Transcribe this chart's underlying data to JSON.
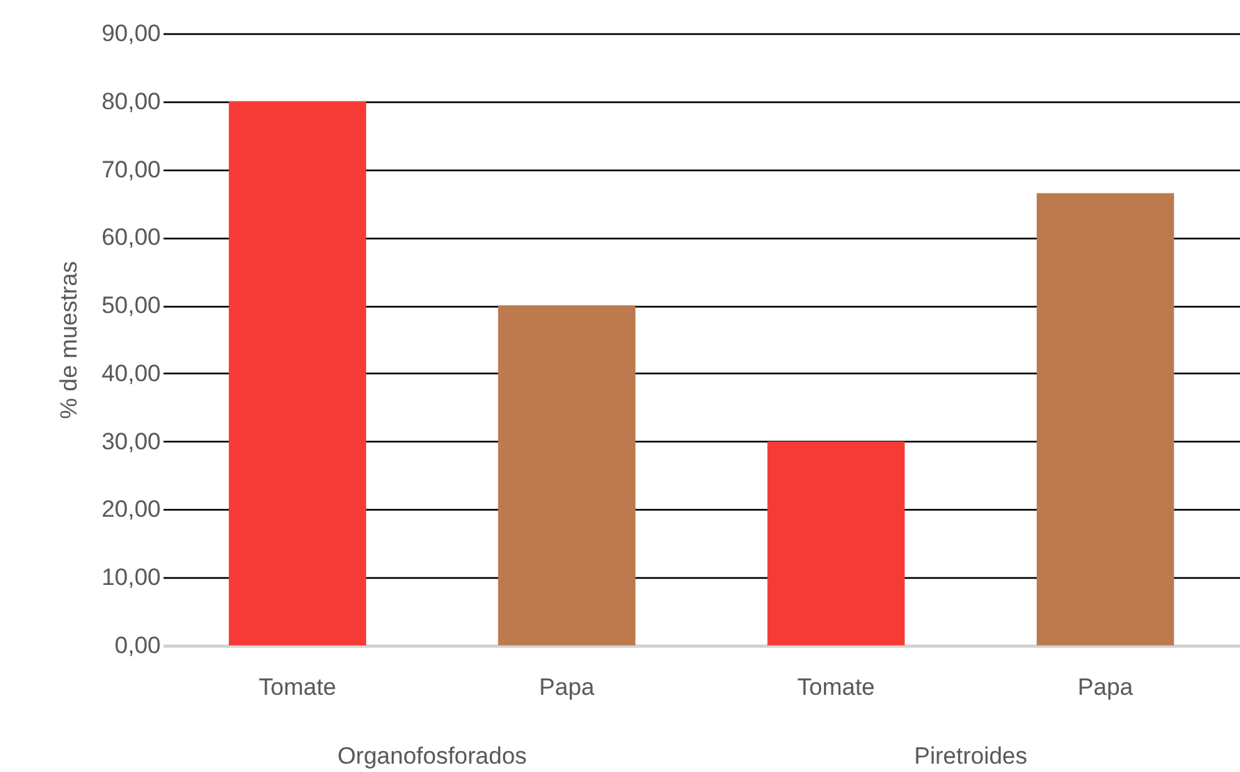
{
  "chart_data": {
    "type": "bar",
    "ylabel": "% de muestras",
    "categories": [
      "Tomate",
      "Papa",
      "Tomate",
      "Papa"
    ],
    "values": [
      80,
      50,
      30,
      66.5
    ],
    "colors": [
      "#f63b36",
      "#bd7a4e",
      "#f63b36",
      "#bd7a4e"
    ],
    "ylim": [
      0,
      90
    ],
    "yticks": [
      {
        "value": 0,
        "label": "0,00"
      },
      {
        "value": 10,
        "label": "10,00"
      },
      {
        "value": 20,
        "label": "20,00"
      },
      {
        "value": 30,
        "label": "30,00"
      },
      {
        "value": 40,
        "label": "40,00"
      },
      {
        "value": 50,
        "label": "50,00"
      },
      {
        "value": 60,
        "label": "60,00"
      },
      {
        "value": 70,
        "label": "70,00"
      },
      {
        "value": 80,
        "label": "80,00"
      },
      {
        "value": 90,
        "label": "90,00"
      }
    ],
    "grid": "y",
    "annotations": [
      "Organofosforados",
      "Piretroides"
    ]
  }
}
